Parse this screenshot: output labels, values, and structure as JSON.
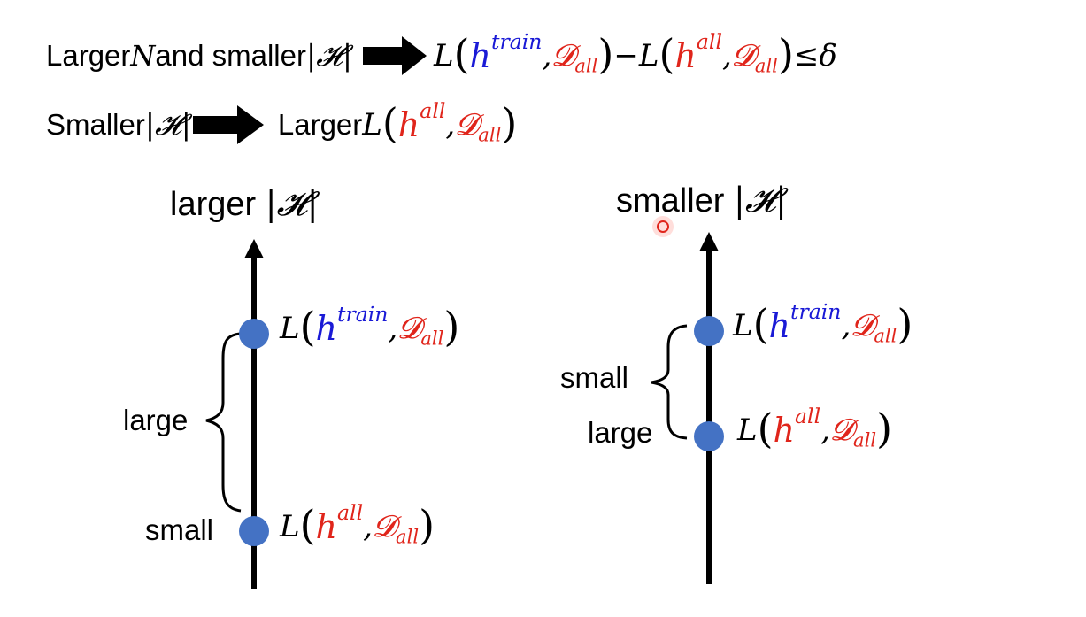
{
  "top": {
    "line1": {
      "prefix": "Larger ",
      "n_symbol": "N",
      "middle": " and smaller ",
      "h_set": "|𝓗|",
      "L": "L",
      "h": "h",
      "train": "train",
      "comma": ",",
      "D": "𝓓",
      "all": "all",
      "minus": " − ",
      "leq": " ≤ ",
      "delta": "δ"
    },
    "line2": {
      "prefix": "Smaller ",
      "h_set": "|𝓗|",
      "larger": "Larger ",
      "L": "L",
      "h": "h",
      "all": "all",
      "comma": ",",
      "D": "𝓓"
    }
  },
  "left_diagram": {
    "title_word": "larger ",
    "title_set": "|𝓗|",
    "upper_point": {
      "L": "L",
      "h": "h",
      "sup": "train",
      "comma": ",",
      "D": "𝓓",
      "sub": "all"
    },
    "lower_point": {
      "L": "L",
      "h": "h",
      "sup": "all",
      "comma": ",",
      "D": "𝓓",
      "sub": "all"
    },
    "brace_label": "large",
    "lower_label": "small"
  },
  "right_diagram": {
    "title_word": "smaller ",
    "title_set": "|𝓗|",
    "upper_point": {
      "L": "L",
      "h": "h",
      "sup": "train",
      "comma": ",",
      "D": "𝓓",
      "sub": "all"
    },
    "lower_point": {
      "L": "L",
      "h": "h",
      "sup": "all",
      "comma": ",",
      "D": "𝓓",
      "sub": "all"
    },
    "brace_label": "small",
    "lower_label": "large"
  },
  "colors": {
    "blue": "#1a1ad6",
    "red": "#e0251b",
    "dot": "#4472c4",
    "pointer": "#e0251b"
  }
}
